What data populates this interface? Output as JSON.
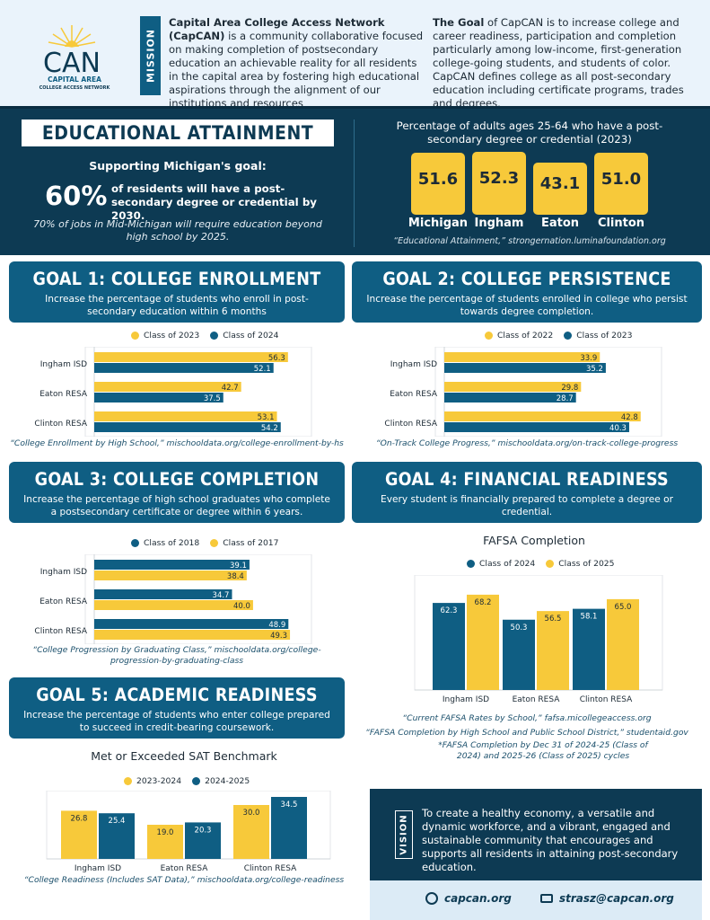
{
  "logo": {
    "name": "CAN",
    "line1": "CAPITAL AREA",
    "line2": "COLLEGE ACCESS NETWORK"
  },
  "mission": {
    "tab": "MISSION",
    "lead": "Capital Area College Access Network (CapCAN)",
    "body": " is a community collaborative focused on making completion of postsecondary education an achievable reality for all residents in the capital area by fostering high educational aspirations through the alignment of our institutions and resources"
  },
  "goal_statement": {
    "lead": "The Goal",
    "body": " of CapCAN is to increase college and career readiness, participation and completion particularly among low-income, first-generation college-going students, and students of color. CapCAN defines college as all post-secondary education including certificate programs, trades and degrees."
  },
  "attainment": {
    "title": "EDUCATIONAL ATTAINMENT",
    "support": "Supporting Michigan's goal:",
    "big_pct": "60%",
    "big_text": "of residents will have a post-secondary degree or credential by 2030.",
    "jobs": "70% of jobs in Mid-Michigan will require education beyond high school by 2025.",
    "subtitle": "Percentage of adults ages 25-64 who have a post-secondary degree or credential (2023)",
    "boxes": [
      {
        "label": "Michigan",
        "value": "51.6"
      },
      {
        "label": "Ingham",
        "value": "52.3"
      },
      {
        "label": "Eaton",
        "value": "43.1"
      },
      {
        "label": "Clinton",
        "value": "51.0"
      }
    ],
    "source": "“Educational Attainment,” strongernation.luminafoundation.org"
  },
  "colors": {
    "navy": "#0d3a53",
    "teal": "#0f5e83",
    "yellow": "#f7c93a"
  },
  "goal1": {
    "title": "GOAL 1: COLLEGE ENROLLMENT",
    "desc": "Increase the percentage of students who enroll in post-secondary education within 6 months",
    "source": "“College Enrollment by High School,” mischooldata.org/college-enrollment-by-hs"
  },
  "goal2": {
    "title": "GOAL 2: COLLEGE PERSISTENCE",
    "desc": "Increase the percentage of students enrolled in college who persist towards degree completion.",
    "source": "“On-Track College Progress,” mischooldata.org/on-track-college-progress"
  },
  "goal3": {
    "title": "GOAL 3: COLLEGE COMPLETION",
    "desc": "Increase the percentage of high school graduates who complete a postsecondary certificate or degree within 6 years.",
    "source": "“College Progression by Graduating Class,” mischooldata.org/college-progression-by-graduating-class"
  },
  "goal4": {
    "title": "GOAL 4: FINANCIAL READINESS",
    "desc": "Every student is financially prepared to complete a degree or credential.",
    "source1": "“Current FAFSA Rates by School,” fafsa.micollegeaccess.org",
    "source2": "“FAFSA Completion by High School and Public School District,” studentaid.gov",
    "source3": "*FAFSA Completion by Dec 31 of 2024-25 (Class of 2024) and 2025-26 (Class of 2025) cycles"
  },
  "goal5": {
    "title": "GOAL 5: ACADEMIC READINESS",
    "desc": "Increase the percentage of students who enter college prepared to succeed in credit-bearing coursework.",
    "source": "“College Readiness (Includes SAT Data),” mischooldata.org/college-readiness"
  },
  "chart_data": [
    {
      "id": "c1",
      "type": "bar",
      "orientation": "horizontal",
      "title": "",
      "categories": [
        "Ingham ISD",
        "Eaton RESA",
        "Clinton RESA"
      ],
      "series": [
        {
          "name": "Class of 2023",
          "color": "#f7c93a",
          "values": [
            56.3,
            42.7,
            53.1
          ]
        },
        {
          "name": "Class of 2024",
          "color": "#0f5e83",
          "values": [
            52.1,
            37.5,
            54.2
          ]
        }
      ],
      "xlim": [
        0,
        60
      ],
      "legend": "top"
    },
    {
      "id": "c2",
      "type": "bar",
      "orientation": "horizontal",
      "title": "",
      "categories": [
        "Ingham ISD",
        "Eaton RESA",
        "Clinton RESA"
      ],
      "series": [
        {
          "name": "Class of 2022",
          "color": "#f7c93a",
          "values": [
            33.9,
            29.8,
            42.8
          ]
        },
        {
          "name": "Class of 2023",
          "color": "#0f5e83",
          "values": [
            35.2,
            28.7,
            40.3
          ]
        }
      ],
      "xlim": [
        0,
        45
      ],
      "legend": "top"
    },
    {
      "id": "c3",
      "type": "bar",
      "orientation": "horizontal",
      "title": "",
      "categories": [
        "Ingham ISD",
        "Eaton RESA",
        "Clinton RESA"
      ],
      "series": [
        {
          "name": "Class of 2018",
          "color": "#0f5e83",
          "values": [
            39.1,
            34.7,
            48.9
          ]
        },
        {
          "name": "Class of 2017",
          "color": "#f7c93a",
          "values": [
            38.4,
            40.0,
            49.3
          ]
        }
      ],
      "xlim": [
        0,
        52
      ],
      "legend": "top"
    },
    {
      "id": "c4",
      "type": "bar",
      "orientation": "vertical",
      "title": "FAFSA Completion",
      "categories": [
        "Ingham ISD",
        "Eaton RESA",
        "Clinton RESA"
      ],
      "series": [
        {
          "name": "Class of 2024",
          "color": "#0f5e83",
          "values": [
            62.3,
            50.3,
            58.1
          ]
        },
        {
          "name": "Class of 2025",
          "color": "#f7c93a",
          "values": [
            68.2,
            56.5,
            65.0
          ]
        }
      ],
      "ylim": [
        0,
        72
      ],
      "legend": "top"
    },
    {
      "id": "c5",
      "type": "bar",
      "orientation": "vertical",
      "title": "Met or Exceeded SAT Benchmark",
      "categories": [
        "Ingham ISD",
        "Eaton RESA",
        "Clinton RESA"
      ],
      "series": [
        {
          "name": "2023-2024",
          "color": "#f7c93a",
          "values": [
            26.8,
            19.0,
            30.0
          ]
        },
        {
          "name": "2024-2025",
          "color": "#0f5e83",
          "values": [
            25.4,
            20.3,
            34.5
          ]
        }
      ],
      "ylim": [
        0,
        36
      ],
      "legend": "top"
    }
  ],
  "vision": {
    "tab": "VISION",
    "text": "To create a healthy economy, a versatile and dynamic workforce, and a vibrant, engaged and sustainable community that encourages and supports all residents in attaining post-secondary education."
  },
  "contact": {
    "web": "capcan.org",
    "email": "strasz@capcan.org",
    "web_icon": "globe-icon",
    "email_icon": "mail-icon"
  }
}
